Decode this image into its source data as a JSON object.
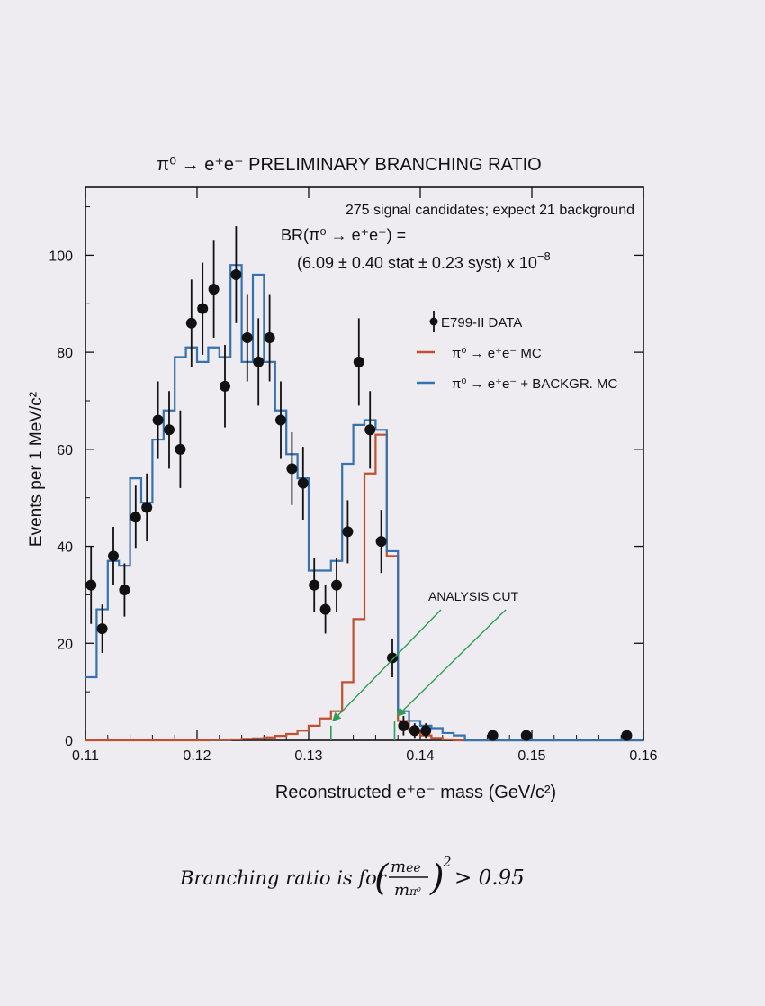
{
  "chart_data": {
    "type": "histogram",
    "title": "π⁰ → e⁺e⁻ PRELIMINARY BRANCHING RATIO",
    "xlabel": "Reconstructed e⁺e⁻ mass (GeV/c²)",
    "ylabel": "Events per 1 MeV/c²",
    "xlim": [
      0.11,
      0.16
    ],
    "ylim": [
      0,
      114
    ],
    "x_ticks": [
      "0.11",
      "0.12",
      "0.13",
      "0.14",
      "0.15",
      "0.16"
    ],
    "y_ticks": [
      "0",
      "20",
      "40",
      "60",
      "80",
      "100"
    ],
    "annotations": {
      "line1": "275 signal candidates; expect 21 background",
      "line2": "BR(π⁰ → e⁺e⁻) =",
      "line3": "(6.09 ± 0.40 stat ± 0.23 syst) x 10",
      "line3_exp": "−8",
      "cut_label": "ANALYSIS CUT"
    },
    "analysis_cut_x": [
      0.132,
      0.1377
    ],
    "legend": {
      "position": "right",
      "entries": [
        {
          "label": "E799-II DATA",
          "kind": "points",
          "color": "#111111"
        },
        {
          "label": "π⁰ → e⁺e⁻ MC",
          "kind": "line",
          "color": "#c0502e"
        },
        {
          "label": "π⁰ → e⁺e⁻ + BACKGR. MC",
          "kind": "line",
          "color": "#3672b0"
        }
      ]
    },
    "series": [
      {
        "name": "E799-II DATA",
        "kind": "points",
        "color": "#111111",
        "x": [
          0.1105,
          0.1115,
          0.1125,
          0.1135,
          0.1145,
          0.1155,
          0.1165,
          0.1175,
          0.1185,
          0.1195,
          0.1205,
          0.1215,
          0.1225,
          0.1235,
          0.1245,
          0.1255,
          0.1265,
          0.1275,
          0.1285,
          0.1295,
          0.1305,
          0.1315,
          0.1325,
          0.1335,
          0.1345,
          0.1355,
          0.1365,
          0.1375,
          0.1385,
          0.1395,
          0.1405,
          0.1465,
          0.1495,
          0.1585
        ],
        "y": [
          32,
          23,
          38,
          31,
          46,
          48,
          66,
          64,
          60,
          86,
          89,
          93,
          73,
          96,
          83,
          78,
          83,
          66,
          56,
          53,
          32,
          27,
          32,
          43,
          78,
          64,
          41,
          17,
          3,
          2,
          2,
          1,
          1,
          1
        ],
        "err": [
          8,
          5,
          6,
          5.5,
          6.5,
          7,
          8,
          8,
          8,
          9,
          9.5,
          10,
          8.5,
          10,
          9,
          9,
          9,
          8,
          7.5,
          7.5,
          5.5,
          5,
          5.5,
          6.5,
          9,
          8,
          6.5,
          4,
          2,
          1.5,
          1.5,
          1,
          1,
          1
        ]
      },
      {
        "name": "π⁰ → e⁺e⁻ MC",
        "kind": "step",
        "color": "#c0502e",
        "edges": [
          0.11,
          0.111,
          0.112,
          0.113,
          0.114,
          0.115,
          0.116,
          0.117,
          0.118,
          0.119,
          0.12,
          0.121,
          0.122,
          0.123,
          0.124,
          0.125,
          0.126,
          0.127,
          0.128,
          0.129,
          0.13,
          0.131,
          0.132,
          0.133,
          0.134,
          0.135,
          0.136,
          0.137,
          0.138,
          0.139,
          0.14,
          0.141,
          0.142,
          0.143,
          0.144,
          0.145,
          0.146,
          0.147,
          0.148,
          0.149,
          0.15,
          0.151,
          0.152,
          0.153,
          0.154,
          0.155,
          0.156,
          0.157,
          0.158,
          0.159,
          0.16
        ],
        "values": [
          0,
          0,
          0,
          0,
          0,
          0,
          0,
          0,
          0,
          0,
          0,
          0.1,
          0.1,
          0.2,
          0.3,
          0.4,
          0.6,
          0.9,
          1.3,
          2,
          3,
          4.5,
          6,
          12,
          25,
          55,
          63,
          38,
          4,
          2,
          1,
          0.5,
          0.2,
          0,
          0,
          0,
          0,
          0,
          0,
          0,
          0,
          0,
          0,
          0,
          0,
          0,
          0,
          0,
          0,
          0
        ]
      },
      {
        "name": "π⁰ → e⁺e⁻ + BACKGR. MC",
        "kind": "step",
        "color": "#3672b0",
        "edges": [
          0.11,
          0.111,
          0.112,
          0.113,
          0.114,
          0.115,
          0.116,
          0.117,
          0.118,
          0.119,
          0.12,
          0.121,
          0.122,
          0.123,
          0.124,
          0.125,
          0.126,
          0.127,
          0.128,
          0.129,
          0.13,
          0.131,
          0.132,
          0.133,
          0.134,
          0.135,
          0.136,
          0.137,
          0.138,
          0.139,
          0.14,
          0.141,
          0.142,
          0.143,
          0.144,
          0.145,
          0.146,
          0.147,
          0.148,
          0.149,
          0.15,
          0.151,
          0.152,
          0.153,
          0.154,
          0.155,
          0.156,
          0.157,
          0.158,
          0.159,
          0.16
        ],
        "values": [
          13,
          27,
          37,
          36,
          54,
          49,
          62,
          68,
          79,
          81,
          78,
          81,
          79,
          98,
          78,
          96,
          78,
          68,
          59,
          54,
          35,
          35,
          37,
          57,
          65,
          66,
          64,
          39,
          6,
          4,
          3,
          2.5,
          1.5,
          1,
          0,
          0,
          0,
          0,
          0,
          0,
          0,
          0,
          0,
          0,
          0,
          0,
          0,
          0,
          0,
          0
        ]
      }
    ]
  },
  "note": {
    "text_prefix": "Branching ratio is for",
    "numerator": "m",
    "numerator_sub": "ee",
    "denominator": "m",
    "denominator_sub": "π⁰",
    "exponent": "2",
    "threshold": "> 0.95"
  }
}
